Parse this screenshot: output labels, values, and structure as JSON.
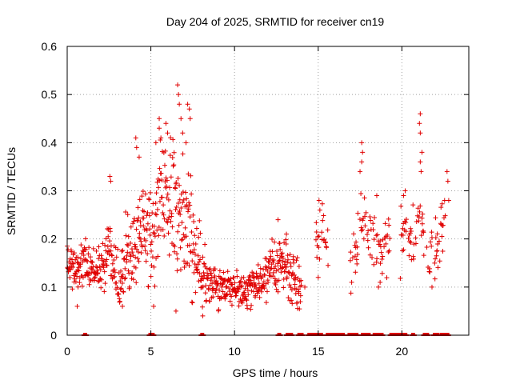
{
  "chart_data": {
    "type": "scatter",
    "title": "Day 204 of 2025, SRMTID for receiver cn19",
    "xlabel": "GPS time / hours",
    "ylabel": "SRMTID / TECUs",
    "xlim": [
      0,
      24
    ],
    "ylim": [
      0,
      0.6
    ],
    "xticks": [
      "0",
      "5",
      "10",
      "15",
      "20"
    ],
    "yticks": [
      "0",
      "0.1",
      "0.2",
      "0.3",
      "0.4",
      "0.5",
      "0.6"
    ],
    "grid": true,
    "marker": "+",
    "color": "#e00000",
    "trend": [
      [
        0.0,
        0.14
      ],
      [
        0.5,
        0.13
      ],
      [
        1.0,
        0.16
      ],
      [
        1.5,
        0.14
      ],
      [
        2.0,
        0.13
      ],
      [
        2.5,
        0.19
      ],
      [
        3.0,
        0.11
      ],
      [
        3.5,
        0.15
      ],
      [
        4.0,
        0.19
      ],
      [
        4.5,
        0.22
      ],
      [
        5.0,
        0.2
      ],
      [
        5.5,
        0.3
      ],
      [
        6.0,
        0.28
      ],
      [
        6.5,
        0.25
      ],
      [
        7.0,
        0.24
      ],
      [
        7.5,
        0.19
      ],
      [
        8.0,
        0.15
      ],
      [
        8.5,
        0.12
      ],
      [
        9.0,
        0.1
      ],
      [
        9.5,
        0.1
      ],
      [
        10.0,
        0.1
      ],
      [
        10.5,
        0.09
      ],
      [
        11.0,
        0.1
      ],
      [
        11.5,
        0.11
      ],
      [
        12.0,
        0.12
      ],
      [
        12.5,
        0.15
      ],
      [
        13.0,
        0.15
      ],
      [
        13.5,
        0.12
      ],
      [
        14.0,
        0.11
      ],
      [
        15.0,
        0.2
      ],
      [
        15.2,
        0.22
      ],
      [
        17.0,
        0.16
      ],
      [
        17.5,
        0.2
      ],
      [
        18.0,
        0.23
      ],
      [
        18.5,
        0.18
      ],
      [
        19.0,
        0.18
      ],
      [
        20.0,
        0.2
      ],
      [
        20.5,
        0.19
      ],
      [
        21.0,
        0.26
      ],
      [
        21.5,
        0.16
      ],
      [
        22.0,
        0.18
      ],
      [
        22.5,
        0.25
      ]
    ],
    "gaps": [
      [
        14.0,
        14.8
      ],
      [
        15.6,
        16.9
      ],
      [
        19.3,
        19.9
      ],
      [
        22.6,
        24.0
      ]
    ],
    "spread": [
      [
        0.0,
        1.0,
        0.05
      ],
      [
        1.0,
        2.5,
        0.05
      ],
      [
        2.5,
        4.0,
        0.08
      ],
      [
        4.0,
        5.0,
        0.09
      ],
      [
        5.0,
        7.5,
        0.14
      ],
      [
        7.5,
        8.5,
        0.07
      ],
      [
        8.5,
        12.0,
        0.04
      ],
      [
        12.0,
        14.0,
        0.06
      ],
      [
        14.0,
        24.0,
        0.07
      ]
    ],
    "peaks": [
      [
        4.1,
        0.41
      ],
      [
        4.15,
        0.39
      ],
      [
        4.3,
        0.37
      ],
      [
        2.55,
        0.33
      ],
      [
        2.6,
        0.32
      ],
      [
        5.5,
        0.45
      ],
      [
        5.5,
        0.43
      ],
      [
        5.6,
        0.41
      ],
      [
        5.9,
        0.44
      ],
      [
        6.0,
        0.42
      ],
      [
        6.6,
        0.52
      ],
      [
        6.65,
        0.5
      ],
      [
        6.7,
        0.48
      ],
      [
        6.8,
        0.45
      ],
      [
        7.2,
        0.48
      ],
      [
        7.3,
        0.47
      ],
      [
        7.35,
        0.45
      ],
      [
        6.9,
        0.42
      ],
      [
        5.3,
        0.4
      ],
      [
        7.1,
        0.4
      ],
      [
        17.6,
        0.4
      ],
      [
        17.65,
        0.38
      ],
      [
        17.6,
        0.36
      ],
      [
        17.5,
        0.34
      ],
      [
        21.1,
        0.46
      ],
      [
        21.05,
        0.44
      ],
      [
        21.1,
        0.42
      ],
      [
        21.2,
        0.38
      ],
      [
        21.1,
        0.36
      ],
      [
        21.15,
        0.34
      ],
      [
        22.7,
        0.34
      ],
      [
        22.75,
        0.32
      ],
      [
        22.8,
        0.28
      ],
      [
        20.1,
        0.29
      ],
      [
        20.2,
        0.3
      ],
      [
        18.5,
        0.29
      ],
      [
        15.05,
        0.28
      ],
      [
        15.1,
        0.26
      ],
      [
        12.6,
        0.24
      ],
      [
        13.1,
        0.21
      ],
      [
        8.1,
        0.04
      ],
      [
        6.5,
        0.05
      ],
      [
        3.3,
        0.06
      ],
      [
        0.6,
        0.06
      ],
      [
        18.6,
        0.1
      ],
      [
        18.7,
        0.11
      ],
      [
        21.8,
        0.1
      ],
      [
        17.0,
        0.11
      ],
      [
        14.2,
        0.1
      ],
      [
        15.0,
        0.12
      ]
    ],
    "zero_values": [
      [
        1.0,
        1.2
      ],
      [
        4.9,
        5.2
      ],
      [
        8.0,
        8.2
      ],
      [
        12.6,
        12.8
      ],
      [
        13.1,
        13.5
      ],
      [
        13.8,
        14.1
      ],
      [
        14.4,
        15.3
      ],
      [
        15.5,
        16.6
      ],
      [
        16.8,
        17.4
      ],
      [
        17.6,
        18.1
      ],
      [
        18.3,
        18.9
      ],
      [
        19.3,
        20.3
      ],
      [
        20.6,
        20.8
      ],
      [
        21.3,
        21.6
      ],
      [
        21.9,
        22.2
      ],
      [
        22.3,
        22.8
      ]
    ]
  }
}
